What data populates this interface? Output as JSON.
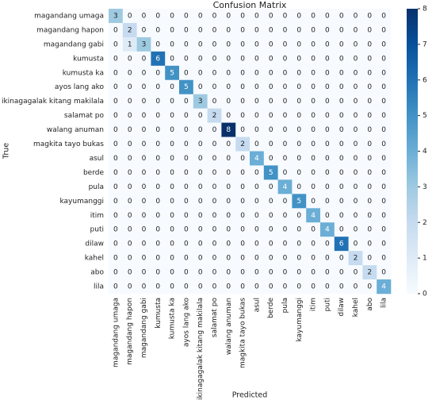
{
  "chart_data": {
    "type": "heatmap",
    "title": "Confusion Matrix",
    "x_label": "Predicted",
    "y_label": "True",
    "categories": [
      "magandang umaga",
      "magandang hapon",
      "magandang gabi",
      "kumusta",
      "kumusta ka",
      "ayos lang ako",
      "ikinagagalak kitang makilala",
      "salamat po",
      "walang anuman",
      "magkita tayo bukas",
      "asul",
      "berde",
      "pula",
      "kayumanggi",
      "itim",
      "puti",
      "dilaw",
      "kahel",
      "abo",
      "lila"
    ],
    "values": [
      [
        3,
        0,
        0,
        0,
        0,
        0,
        0,
        0,
        0,
        0,
        0,
        0,
        0,
        0,
        0,
        0,
        0,
        0,
        0,
        0
      ],
      [
        0,
        2,
        0,
        0,
        0,
        0,
        0,
        0,
        0,
        0,
        0,
        0,
        0,
        0,
        0,
        0,
        0,
        0,
        0,
        0
      ],
      [
        0,
        1,
        3,
        0,
        0,
        0,
        0,
        0,
        0,
        0,
        0,
        0,
        0,
        0,
        0,
        0,
        0,
        0,
        0,
        0
      ],
      [
        0,
        0,
        0,
        6,
        0,
        0,
        0,
        0,
        0,
        0,
        0,
        0,
        0,
        0,
        0,
        0,
        0,
        0,
        0,
        0
      ],
      [
        0,
        0,
        0,
        0,
        5,
        0,
        0,
        0,
        0,
        0,
        0,
        0,
        0,
        0,
        0,
        0,
        0,
        0,
        0,
        0
      ],
      [
        0,
        0,
        0,
        0,
        0,
        5,
        0,
        0,
        0,
        0,
        0,
        0,
        0,
        0,
        0,
        0,
        0,
        0,
        0,
        0
      ],
      [
        0,
        0,
        0,
        0,
        0,
        0,
        3,
        0,
        0,
        0,
        0,
        0,
        0,
        0,
        0,
        0,
        0,
        0,
        0,
        0
      ],
      [
        0,
        0,
        0,
        0,
        0,
        0,
        0,
        2,
        0,
        0,
        0,
        0,
        0,
        0,
        0,
        0,
        0,
        0,
        0,
        0
      ],
      [
        0,
        0,
        0,
        0,
        0,
        0,
        0,
        0,
        8,
        0,
        0,
        0,
        0,
        0,
        0,
        0,
        0,
        0,
        0,
        0
      ],
      [
        0,
        0,
        0,
        0,
        0,
        0,
        0,
        0,
        0,
        2,
        0,
        0,
        0,
        0,
        0,
        0,
        0,
        0,
        0,
        0
      ],
      [
        0,
        0,
        0,
        0,
        0,
        0,
        0,
        0,
        0,
        0,
        4,
        0,
        0,
        0,
        0,
        0,
        0,
        0,
        0,
        0
      ],
      [
        0,
        0,
        0,
        0,
        0,
        0,
        0,
        0,
        0,
        0,
        0,
        5,
        0,
        0,
        0,
        0,
        0,
        0,
        0,
        0
      ],
      [
        0,
        0,
        0,
        0,
        0,
        0,
        0,
        0,
        0,
        0,
        0,
        0,
        4,
        0,
        0,
        0,
        0,
        0,
        0,
        0
      ],
      [
        0,
        0,
        0,
        0,
        0,
        0,
        0,
        0,
        0,
        0,
        0,
        0,
        0,
        5,
        0,
        0,
        0,
        0,
        0,
        0
      ],
      [
        0,
        0,
        0,
        0,
        0,
        0,
        0,
        0,
        0,
        0,
        0,
        0,
        0,
        0,
        4,
        0,
        0,
        0,
        0,
        0
      ],
      [
        0,
        0,
        0,
        0,
        0,
        0,
        0,
        0,
        0,
        0,
        0,
        0,
        0,
        0,
        0,
        4,
        0,
        0,
        0,
        0
      ],
      [
        0,
        0,
        0,
        0,
        0,
        0,
        0,
        0,
        0,
        0,
        0,
        0,
        0,
        0,
        0,
        0,
        6,
        0,
        0,
        0
      ],
      [
        0,
        0,
        0,
        0,
        0,
        0,
        0,
        0,
        0,
        0,
        0,
        0,
        0,
        0,
        0,
        0,
        0,
        2,
        0,
        0
      ],
      [
        0,
        0,
        0,
        0,
        0,
        0,
        0,
        0,
        0,
        0,
        0,
        0,
        0,
        0,
        0,
        0,
        0,
        0,
        2,
        0
      ],
      [
        0,
        0,
        0,
        0,
        0,
        0,
        0,
        0,
        0,
        0,
        0,
        0,
        0,
        0,
        0,
        0,
        0,
        0,
        0,
        4
      ]
    ],
    "colormap": "Blues",
    "zlim": [
      0,
      8
    ],
    "zticks": [
      0,
      1,
      2,
      3,
      4,
      5,
      6,
      7,
      8
    ]
  }
}
